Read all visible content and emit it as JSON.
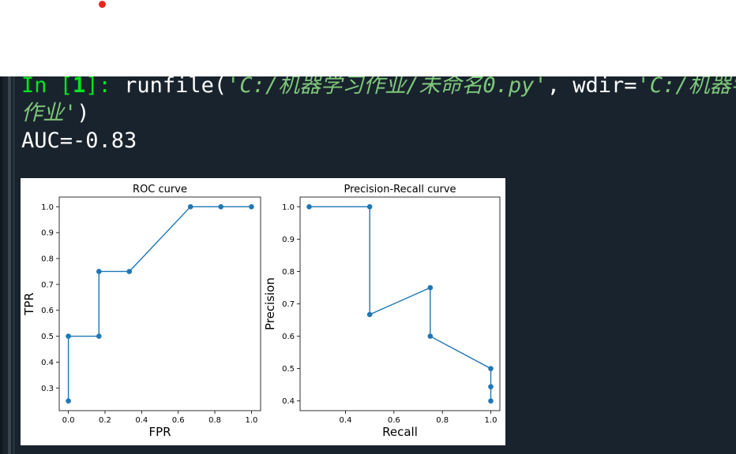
{
  "console": {
    "prompt_in": "In [",
    "prompt_num": "1",
    "prompt_close": "]:",
    "code_fn": " runfile(",
    "code_arg1": "'C:/机器学习作业/未命名0.py'",
    "code_sep": ", wdir=",
    "code_arg2a": "'C:/机器学",
    "code_arg2b": "作业'",
    "code_close": ")",
    "output": "AUC=-0.83"
  },
  "chart_data": [
    {
      "type": "line",
      "title": "ROC curve",
      "xlabel": "FPR",
      "ylabel": "TPR",
      "x": [
        0.0,
        0.0,
        0.167,
        0.167,
        0.333,
        0.667,
        0.833,
        1.0
      ],
      "y": [
        0.25,
        0.5,
        0.5,
        0.75,
        0.75,
        1.0,
        1.0,
        1.0
      ],
      "xlim": [
        -0.05,
        1.05
      ],
      "ylim": [
        0.2125,
        1.0375
      ],
      "xticks": [
        "0.0",
        "0.2",
        "0.4",
        "0.6",
        "0.8",
        "1.0"
      ],
      "yticks": [
        "0.3",
        "0.4",
        "0.5",
        "0.6",
        "0.7",
        "0.8",
        "0.9",
        "1.0"
      ],
      "color": "#1f77b4"
    },
    {
      "type": "line",
      "title": "Precision-Recall curve",
      "xlabel": "Recall",
      "ylabel": "Precision",
      "x": [
        0.25,
        0.5,
        0.5,
        0.75,
        0.75,
        1.0,
        1.0,
        1.0
      ],
      "y": [
        1.0,
        1.0,
        0.667,
        0.75,
        0.6,
        0.5,
        0.444,
        0.4
      ],
      "xlim": [
        0.2125,
        1.0375
      ],
      "ylim": [
        0.37,
        1.03
      ],
      "xticks": [
        "0.4",
        "0.6",
        "0.8",
        "1.0"
      ],
      "yticks": [
        "0.4",
        "0.5",
        "0.6",
        "0.7",
        "0.8",
        "0.9",
        "1.0"
      ],
      "color": "#1f77b4"
    }
  ]
}
